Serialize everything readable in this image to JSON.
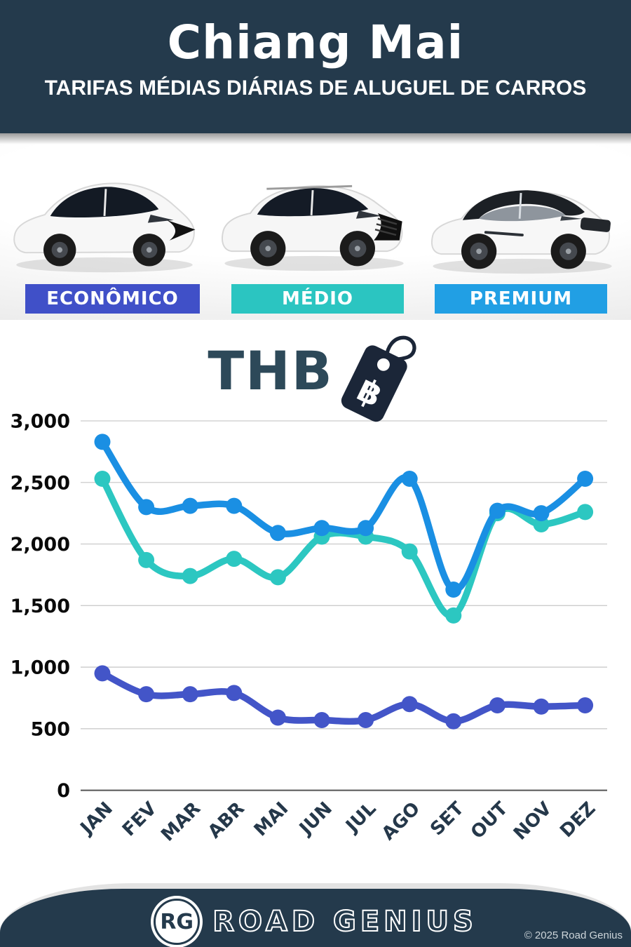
{
  "header": {
    "title": "Chiang Mai",
    "subtitle": "TARIFAS MÉDIAS DIÁRIAS DE ALUGUEL DE CARROS"
  },
  "classes": [
    {
      "label": "ECONÔMICO",
      "color": "#4050c8"
    },
    {
      "label": "MÉDIO",
      "color": "#2bc5c1"
    },
    {
      "label": "PREMIUM",
      "color": "#219fe4"
    }
  ],
  "currency": {
    "code": "THB",
    "symbol": "฿"
  },
  "chart_data": {
    "type": "line",
    "title": "Tarifas médias diárias de aluguel de carros em Chiang Mai (THB)",
    "categories": [
      "JAN",
      "FEV",
      "MAR",
      "ABR",
      "MAI",
      "JUN",
      "JUL",
      "AGO",
      "SET",
      "OUT",
      "NOV",
      "DEZ"
    ],
    "series": [
      {
        "name": "PREMIUM",
        "color": "#1a8fe3",
        "values": [
          2830,
          2300,
          2310,
          2310,
          2090,
          2130,
          2130,
          2530,
          1630,
          2270,
          2250,
          2530
        ]
      },
      {
        "name": "MÉDIO",
        "color": "#2cc7c1",
        "values": [
          2530,
          1870,
          1740,
          1880,
          1730,
          2060,
          2060,
          1940,
          1420,
          2250,
          2160,
          2260
        ]
      },
      {
        "name": "ECONÔMICO",
        "color": "#4355c8",
        "values": [
          950,
          780,
          780,
          790,
          590,
          570,
          570,
          700,
          560,
          690,
          680,
          690
        ]
      }
    ],
    "ylim": [
      0,
      3000
    ],
    "yticks": [
      0,
      500,
      1000,
      1500,
      2000,
      2500,
      3000
    ],
    "ytick_labels": [
      "0",
      "500",
      "1,000",
      "1,500",
      "2,000",
      "2,500",
      "3,000"
    ],
    "grid": true,
    "legend": "category chips above chart"
  },
  "footer": {
    "logo_initials": "RG",
    "brand": "ROAD GENIUS",
    "copyright": "© 2025 Road Genius"
  }
}
